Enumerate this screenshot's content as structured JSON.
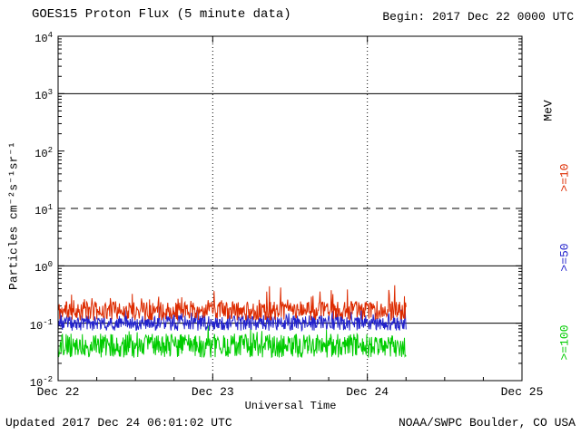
{
  "colors": {
    "background": "#ffffff",
    "foreground": "#000000",
    "red_series": "#dd2b00",
    "blue_series": "#2222cc",
    "green_series": "#00cc00"
  },
  "header": {
    "title": "GOES15 Proton Flux (5 minute data)",
    "begin_label": "Begin: 2017 Dec 22 0000 UTC"
  },
  "axes": {
    "y_label": "Particles cm⁻²s⁻¹sr⁻¹",
    "x_label": "Universal Time",
    "right_unit": "MeV"
  },
  "footer": {
    "updated": "Updated 2017 Dec 24 06:01:02 UTC",
    "source": "NOAA/SWPC Boulder, CO USA"
  },
  "chart_data": {
    "type": "line",
    "title": "GOES15 Proton Flux (5 minute data)",
    "xlabel": "Universal Time",
    "ylabel": "Particles cm⁻²s⁻¹sr⁻¹",
    "x_start": "2017 Dec 22 0000 UTC",
    "x_ticks": [
      "Dec 22",
      "Dec 23",
      "Dec 24",
      "Dec 25"
    ],
    "x_range_days": 3,
    "sample_interval_minutes": 5,
    "data_end_day_fraction": 2.25,
    "y_scale": "log",
    "y_log_min": -2,
    "y_log_max": 4,
    "y_tick_exponents": [
      4,
      3,
      2,
      1,
      0,
      -1,
      -2
    ],
    "gridlines": {
      "horizontal_solid_log": [
        3,
        0,
        -1
      ],
      "horizontal_dashed_log": [
        1
      ],
      "vertical_dotted_days": [
        1,
        2
      ]
    },
    "right_axis_unit": "MeV",
    "series": [
      {
        "name": ">=10",
        "unit": "MeV",
        "color": "#dd2b00",
        "typical_flux_range": [
          0.12,
          0.45
        ],
        "base_log": -0.95,
        "band_log": 0.33,
        "spike_prob": 0.1,
        "spike_log": 0.32,
        "seed": 11,
        "points": 648
      },
      {
        "name": ">=50",
        "unit": "MeV",
        "color": "#2222cc",
        "typical_flux_range": [
          0.07,
          0.2
        ],
        "base_log": -1.13,
        "band_log": 0.27,
        "spike_prob": 0.06,
        "spike_log": 0.22,
        "seed": 23,
        "points": 648
      },
      {
        "name": ">=100",
        "unit": "MeV",
        "color": "#00cc00",
        "typical_flux_range": [
          0.025,
          0.08
        ],
        "base_log": -1.6,
        "band_log": 0.42,
        "spike_prob": 0.05,
        "spike_log": 0.16,
        "seed": 37,
        "points": 648
      }
    ]
  }
}
